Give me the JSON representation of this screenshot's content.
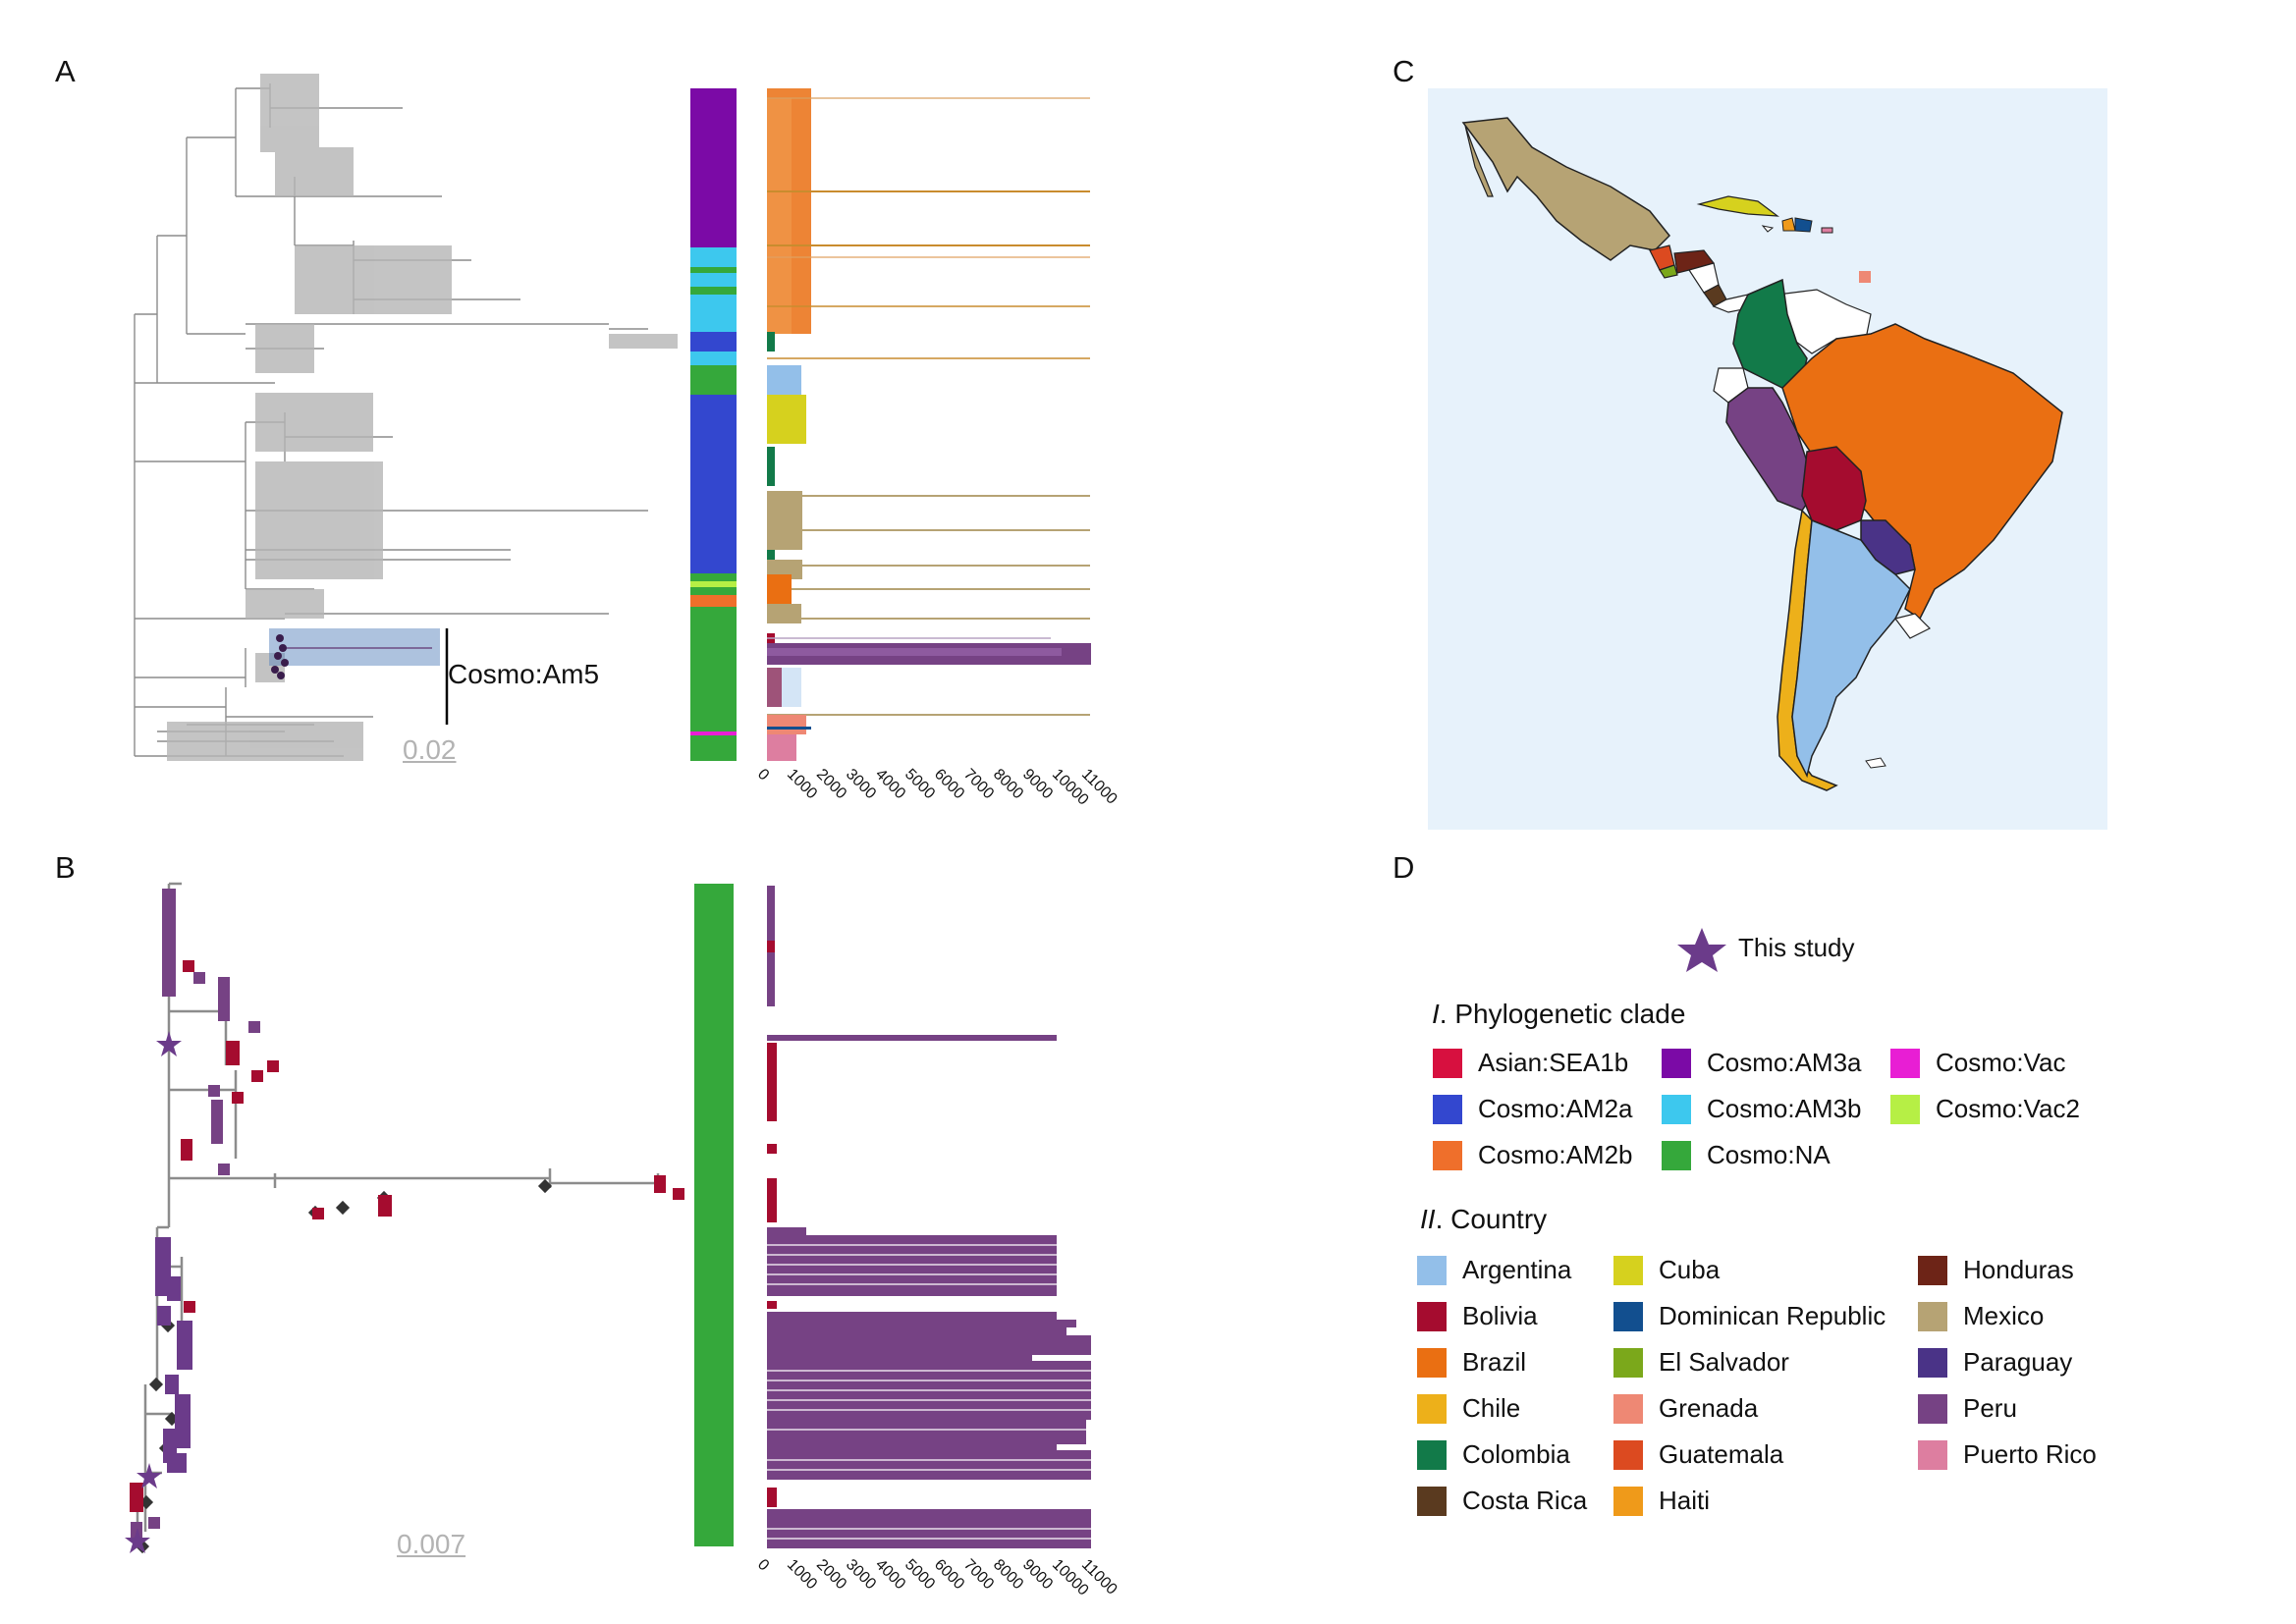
{
  "panels": {
    "a": "A",
    "b": "B",
    "c": "C",
    "d": "D"
  },
  "panel_a": {
    "clade_label": "Cosmo:Am5",
    "scale_bar": "0.02",
    "axis_ticks": [
      "0",
      "1000",
      "2000",
      "3000",
      "4000",
      "5000",
      "6000",
      "7000",
      "8000",
      "9000",
      "10000",
      "11000"
    ]
  },
  "panel_b": {
    "scale_bar": "0.007",
    "axis_ticks": [
      "0",
      "1000",
      "2000",
      "3000",
      "4000",
      "5000",
      "6000",
      "7000",
      "8000",
      "9000",
      "10000",
      "11000"
    ]
  },
  "legend": {
    "this_study": "This study",
    "clade_title_num": "I",
    "clade_title": ". Phylogenetic clade",
    "clades": [
      {
        "name": "Asian:SEA1b",
        "color": "#d7103f"
      },
      {
        "name": "Cosmo:AM3a",
        "color": "#7b0aa6"
      },
      {
        "name": "Cosmo:Vac",
        "color": "#e81ed4"
      },
      {
        "name": "Cosmo:AM2a",
        "color": "#3347cf"
      },
      {
        "name": "Cosmo:AM3b",
        "color": "#3dc8ee"
      },
      {
        "name": "Cosmo:Vac2",
        "color": "#b6ef45"
      },
      {
        "name": "Cosmo:AM2b",
        "color": "#ef6f2b"
      },
      {
        "name": "Cosmo:NA",
        "color": "#35a83b"
      }
    ],
    "country_title_num": "II",
    "country_title": ". Country",
    "countries": [
      {
        "name": "Argentina",
        "color": "#93bfe9"
      },
      {
        "name": "Cuba",
        "color": "#d6d11e"
      },
      {
        "name": "Honduras",
        "color": "#6d2417"
      },
      {
        "name": "Bolivia",
        "color": "#a50c2f"
      },
      {
        "name": "Dominican Republic",
        "color": "#124f8f"
      },
      {
        "name": "Mexico",
        "color": "#b6a374"
      },
      {
        "name": "Brazil",
        "color": "#ea6f12"
      },
      {
        "name": "El Salvador",
        "color": "#7ba81b"
      },
      {
        "name": "Paraguay",
        "color": "#4a3387"
      },
      {
        "name": "Chile",
        "color": "#edb01a"
      },
      {
        "name": "Grenada",
        "color": "#ee8874"
      },
      {
        "name": "Peru",
        "color": "#764284"
      },
      {
        "name": "Colombia",
        "color": "#127a49"
      },
      {
        "name": "Guatemala",
        "color": "#dc4a20"
      },
      {
        "name": "Puerto Rico",
        "color": "#dd7ea0"
      },
      {
        "name": "Costa Rica",
        "color": "#5a3a1f"
      },
      {
        "name": "Haiti",
        "color": "#ef9a1a"
      }
    ]
  }
}
